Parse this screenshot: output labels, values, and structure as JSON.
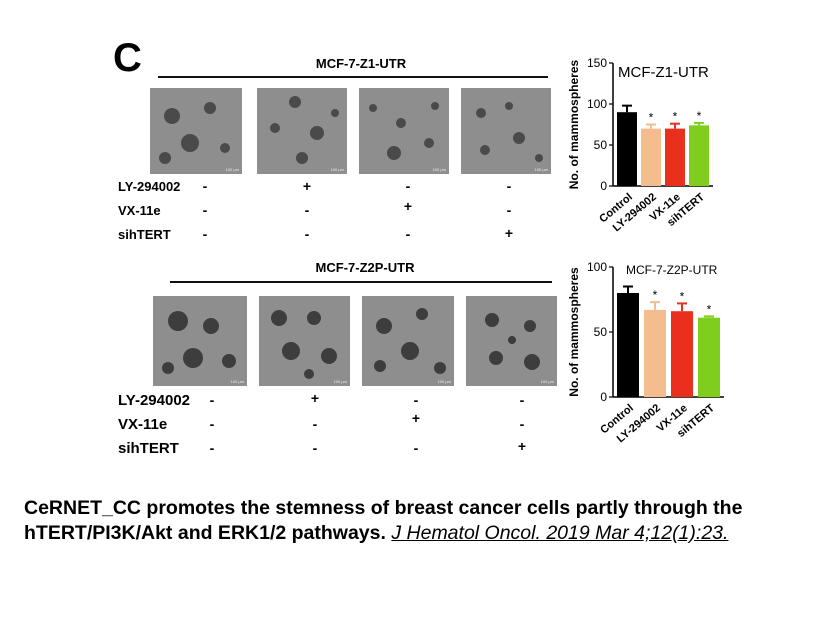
{
  "panel_letter": "C",
  "top": {
    "title": "MCF-7-Z1-UTR",
    "scale_label": "100 μm",
    "rows": [
      {
        "label": "LY-294002",
        "signs": [
          "-",
          "+",
          "-",
          "-"
        ]
      },
      {
        "label": "VX-11e",
        "signs": [
          "-",
          "-",
          "+",
          "-"
        ]
      },
      {
        "label": "sihTERT",
        "signs": [
          "-",
          "-",
          "-",
          "+"
        ]
      }
    ]
  },
  "bottom": {
    "title": "MCF-7-Z2P-UTR",
    "scale_label": "100 μm",
    "rows": [
      {
        "label": "LY-294002",
        "signs": [
          "-",
          "+",
          "-",
          "-"
        ]
      },
      {
        "label": "VX-11e",
        "signs": [
          "-",
          "-",
          "+",
          "-"
        ]
      },
      {
        "label": "sihTERT",
        "signs": [
          "-",
          "-",
          "-",
          "+"
        ]
      }
    ]
  },
  "chart_data": [
    {
      "type": "bar",
      "title": "MCF-Z1-UTR",
      "ylabel": "No. of mammospheres",
      "categories": [
        "Control",
        "LY-294002",
        "VX-11e",
        "sihTERT"
      ],
      "values": [
        90,
        70,
        70,
        74
      ],
      "errors": [
        8,
        5,
        6,
        3
      ],
      "significance": [
        "",
        "*",
        "*",
        "*"
      ],
      "colors": [
        "#000000",
        "#f3bd8e",
        "#e8301c",
        "#7fce1e"
      ],
      "ylim": [
        0,
        150
      ],
      "yticks": [
        0,
        50,
        100,
        150
      ]
    },
    {
      "type": "bar",
      "title": "MCF-7-Z2P-UTR",
      "ylabel": "No. of mammospheres",
      "categories": [
        "Control",
        "LY-294002",
        "VX-11e",
        "sihTERT"
      ],
      "values": [
        80,
        67,
        66,
        61
      ],
      "errors": [
        5,
        6,
        6,
        1
      ],
      "significance": [
        "",
        "*",
        "*",
        "*"
      ],
      "colors": [
        "#000000",
        "#f3bd8e",
        "#e8301c",
        "#7fce1e"
      ],
      "ylim": [
        0,
        100
      ],
      "yticks": [
        0,
        50,
        100
      ]
    }
  ],
  "caption": {
    "text": "CeRNET_CC promotes the stemness of breast cancer cells partly through the hTERT/PI3K/Akt and ERK1/2 pathways.",
    "citation": "J Hematol Oncol. 2019 Mar 4;12(1):23."
  }
}
